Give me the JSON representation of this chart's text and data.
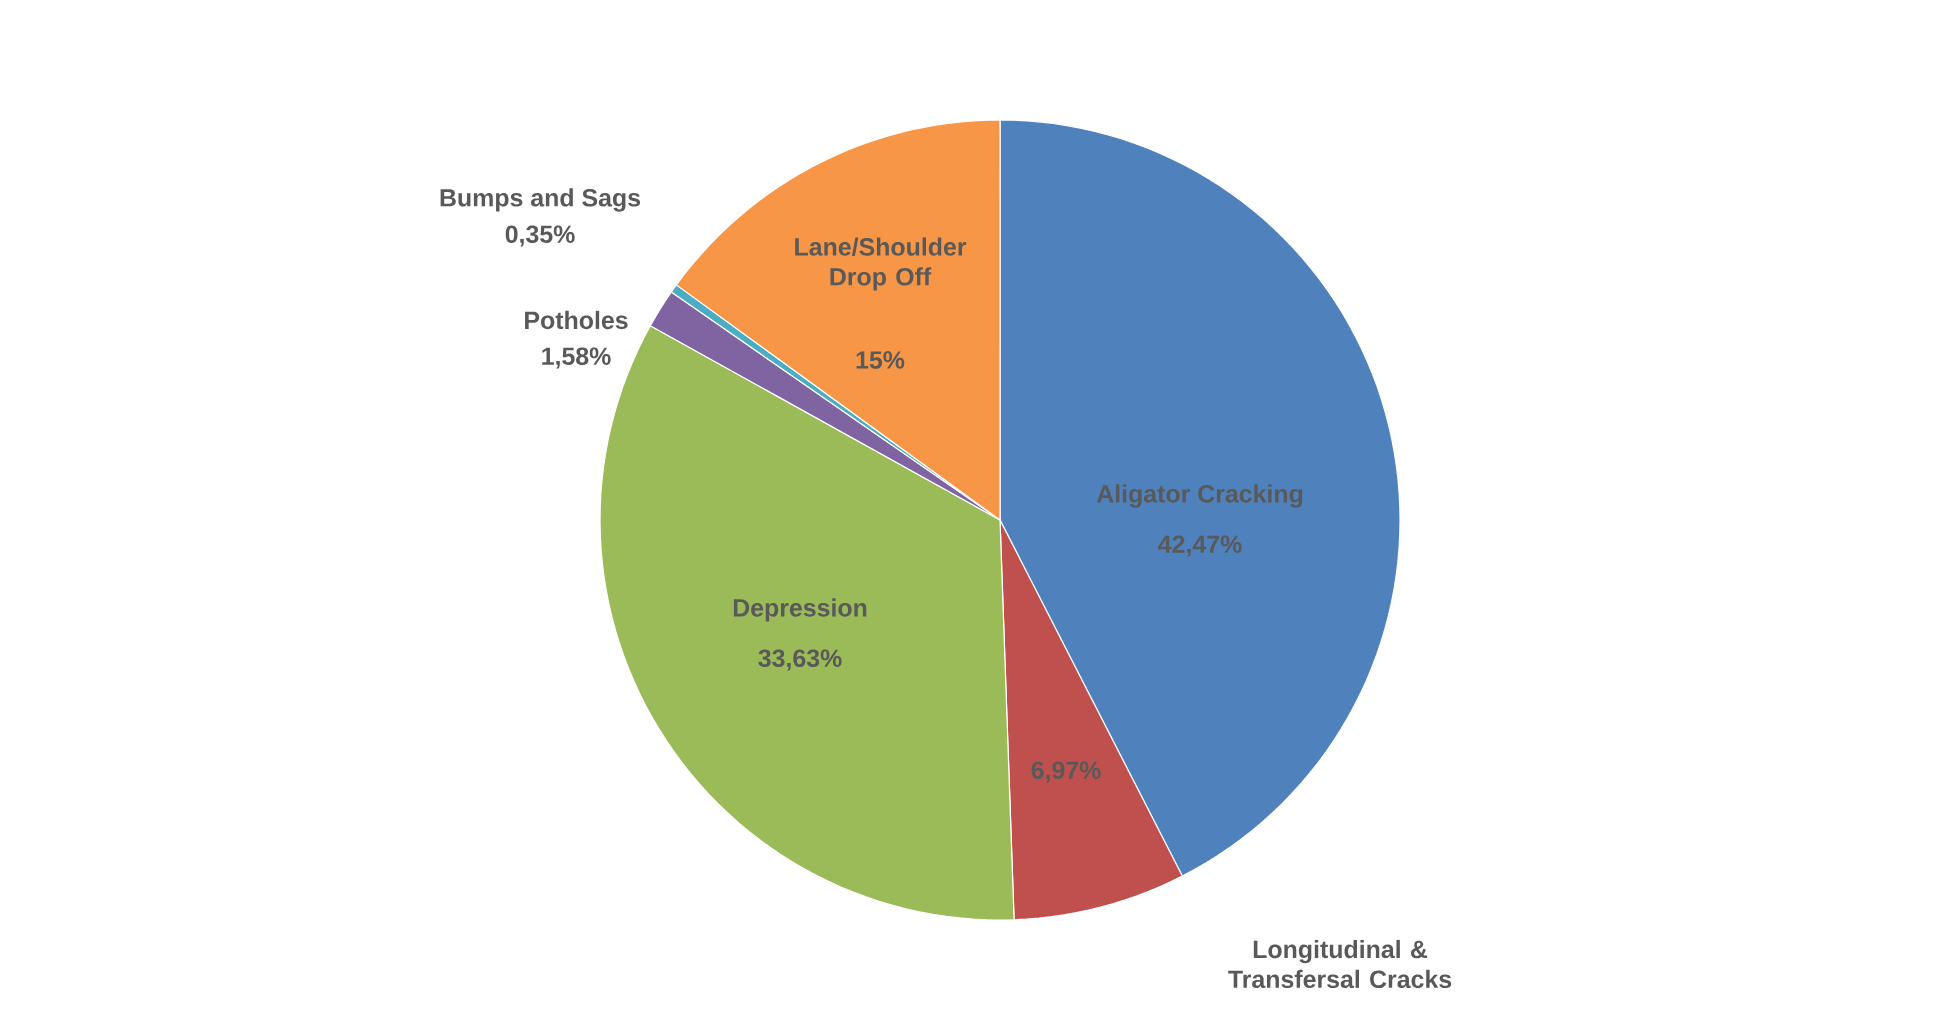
{
  "chart_data": {
    "type": "pie",
    "categories": [
      "Aligator Cracking",
      "Longitudinal & Transfersal Cracks",
      "Depression",
      "Potholes",
      "Bumps and Sags",
      "Lane/Shoulder Drop Off"
    ],
    "values": [
      42.47,
      6.97,
      33.63,
      1.58,
      0.35,
      15
    ],
    "value_labels": [
      "42,47%",
      "6,97%",
      "33,63%",
      "1,58%",
      "0,35%",
      "15%"
    ],
    "colors": [
      "#4f81bd",
      "#c0504d",
      "#9bbb59",
      "#8064a2",
      "#4bacc6",
      "#f79646"
    ]
  }
}
